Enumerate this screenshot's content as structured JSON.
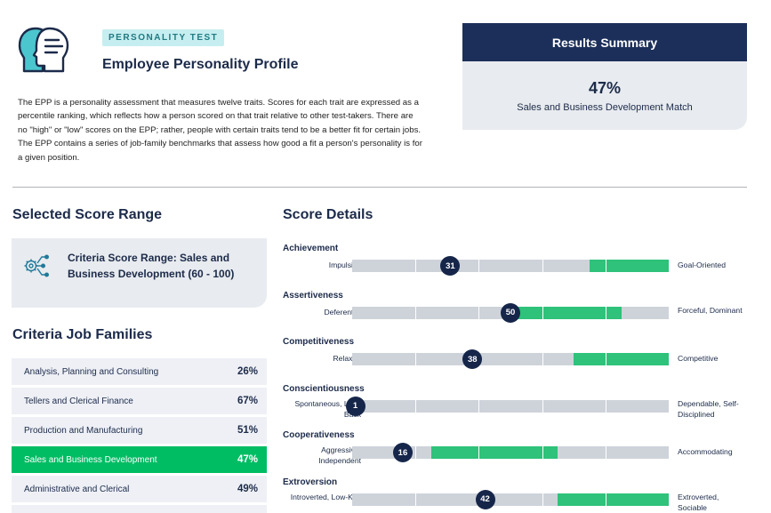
{
  "header": {
    "badge": "PERSONALITY TEST",
    "title": "Employee Personality Profile",
    "description": "The EPP is a personality assessment that measures twelve traits. Scores for each trait are expressed as a percentile ranking, which reflects how a person scored on that trait relative to other test-takers. There are no \"high\" or \"low\" scores on the EPP; rather, people with certain traits tend to be a better fit for certain jobs. The EPP contains a series of job-family benchmarks that assess how good a fit a person's personality is for a given position.",
    "logo_icon": "two-heads-profile-icon"
  },
  "summary": {
    "title": "Results Summary",
    "percent": "47%",
    "label": "Sales and Business Development Match"
  },
  "score_range": {
    "heading": "Selected Score Range",
    "icon": "gear-network-icon",
    "text": "Criteria Score Range: Sales and Business Development (60 - 100)"
  },
  "job_families": {
    "heading": "Criteria Job Families",
    "items": [
      {
        "label": "Analysis, Planning and Consulting",
        "percent": "26%"
      },
      {
        "label": "Tellers and Clerical Finance",
        "percent": "67%"
      },
      {
        "label": "Production and Manufacturing",
        "percent": "51%"
      },
      {
        "label": "Sales and Business Development",
        "percent": "47%",
        "selected": true
      },
      {
        "label": "Administrative and Clerical",
        "percent": "49%"
      }
    ]
  },
  "score_details": {
    "heading": "Score Details",
    "traits": [
      {
        "name": "Achievement",
        "low": "Impulsive",
        "high": "Goal-Oriented",
        "score": 31,
        "range": [
          75,
          100
        ]
      },
      {
        "name": "Assertiveness",
        "low": "Deferential",
        "high": "Forceful, Dominant",
        "score": 50,
        "range": [
          50,
          85
        ]
      },
      {
        "name": "Competitiveness",
        "low": "Relaxed",
        "high": "Competitive",
        "score": 38,
        "range": [
          70,
          100
        ]
      },
      {
        "name": "Conscientiousness",
        "low": "Spontaneous, Laid-Back",
        "high": "Dependable, Self-Disciplined",
        "score": 1,
        "range": null
      },
      {
        "name": "Cooperativeness",
        "low": "Aggressive, Independent",
        "high": "Accommodating",
        "score": 16,
        "range": [
          25,
          65
        ]
      },
      {
        "name": "Extroversion",
        "low": "Introverted, Low-Key",
        "high": "Extroverted, Sociable",
        "score": 42,
        "range": [
          65,
          100
        ]
      }
    ]
  },
  "colors": {
    "navy": "#1c2f5a",
    "accent_green": "#00bd63",
    "range_green": "#2ec27a",
    "teal": "#1f9aa3",
    "bar_gray": "#ced3da"
  }
}
